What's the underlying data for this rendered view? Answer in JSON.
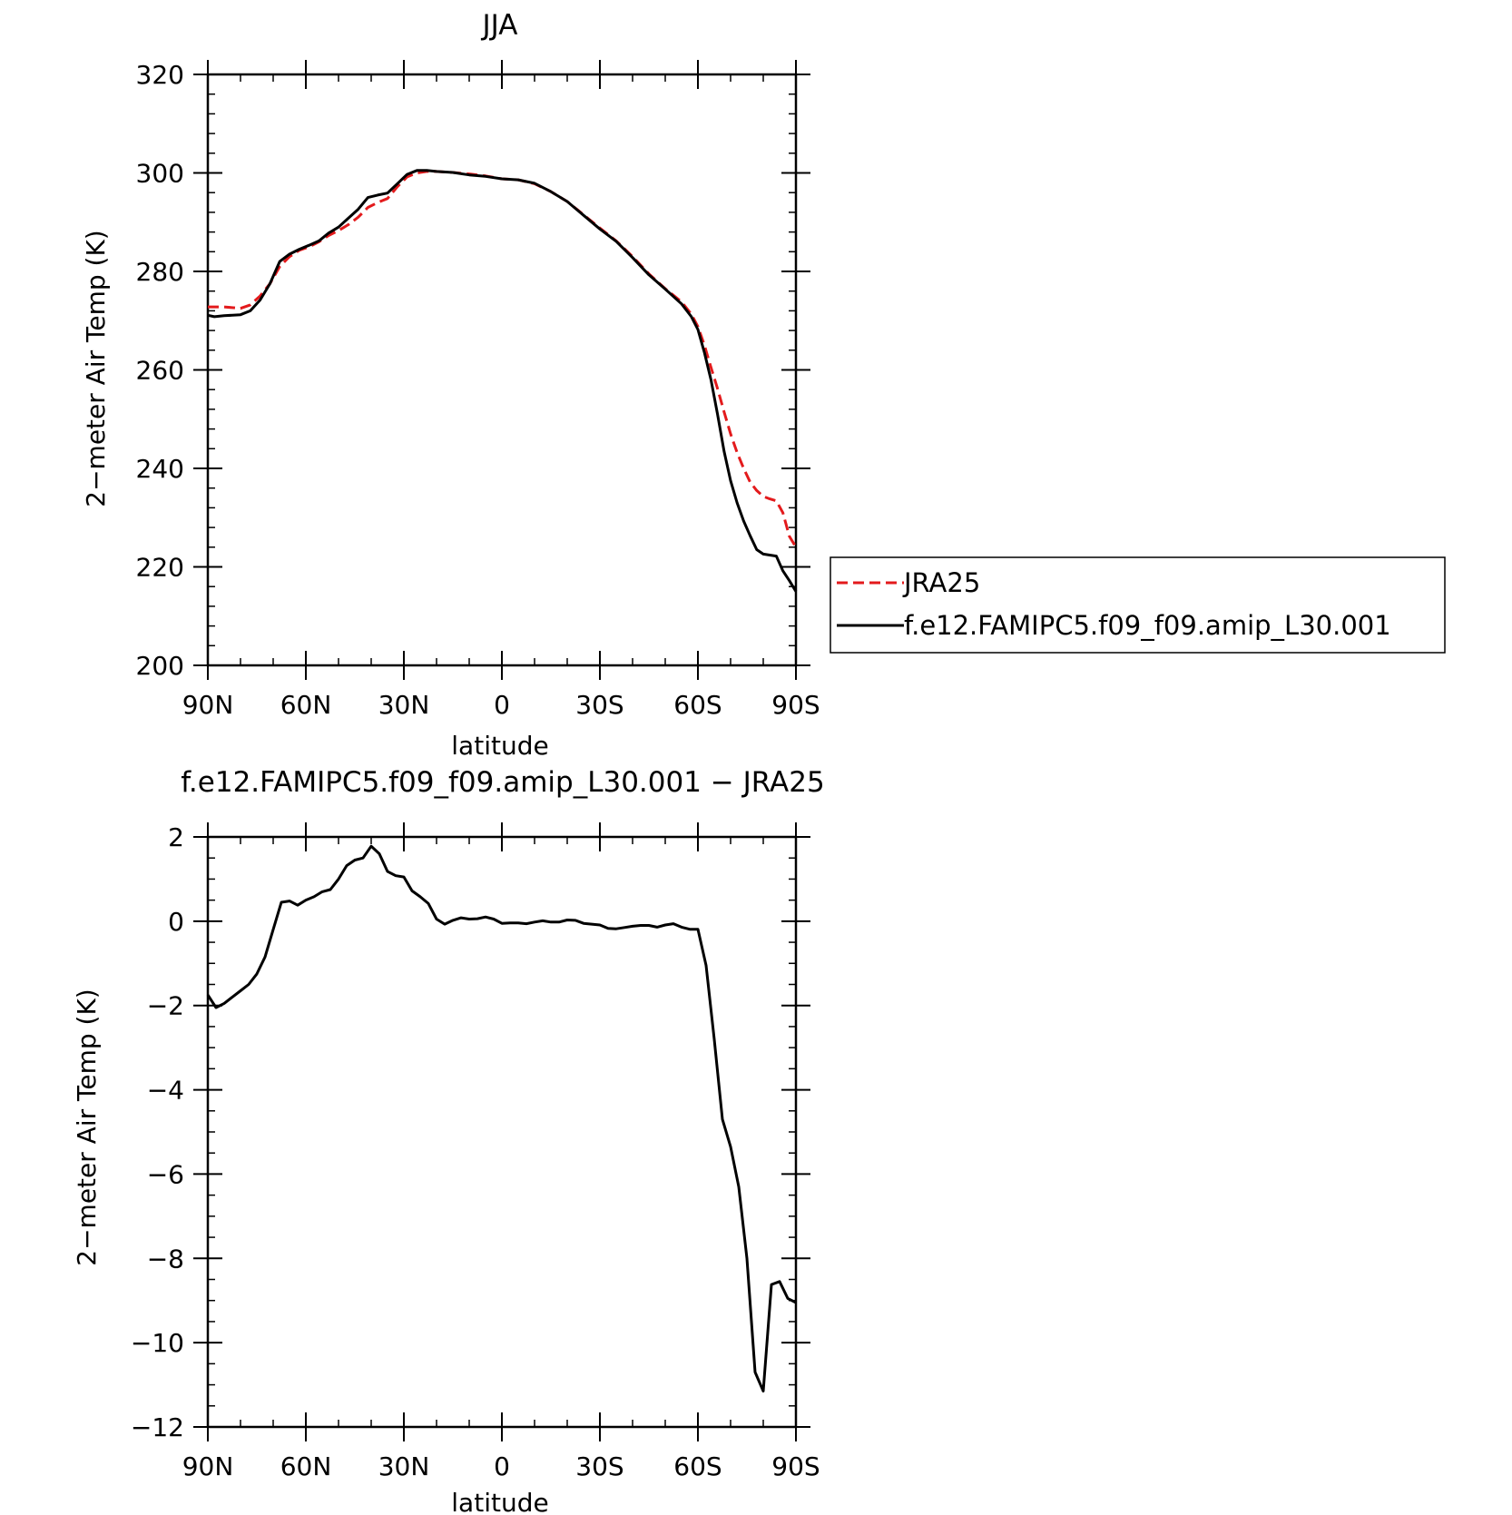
{
  "colors": {
    "jra25": "#e31a1c",
    "model": "#000000"
  },
  "chart_data": [
    {
      "type": "line",
      "title": "JJA",
      "xlabel": "latitude",
      "ylabel": "2−meter Air Temp (K)",
      "xlim": [
        90,
        -90
      ],
      "ylim": [
        200,
        320
      ],
      "xticks": {
        "values": [
          90,
          60,
          30,
          0,
          -30,
          -60,
          -90
        ],
        "labels": [
          "90N",
          "60N",
          "30N",
          "0",
          "30S",
          "60S",
          "90S"
        ]
      },
      "yticks": {
        "values": [
          200,
          220,
          240,
          260,
          280,
          300,
          320
        ],
        "labels": [
          "200",
          "220",
          "240",
          "260",
          "280",
          "300",
          "320"
        ]
      },
      "legend": {
        "placement": "right of plot",
        "entries": [
          "JRA25",
          "f.e12.FAMIPC5.f09_f09.amip_L30.001"
        ]
      },
      "series": [
        {
          "name": "JRA25",
          "style": "dashed",
          "color": "#e31a1c",
          "x": [
            90,
            85,
            80,
            77,
            74,
            71,
            68,
            65,
            62,
            59,
            56,
            53,
            50,
            47,
            44,
            41,
            38,
            35,
            32,
            29,
            26,
            23,
            20,
            15,
            10,
            5,
            0,
            -5,
            -10,
            -15,
            -20,
            -25,
            -30,
            -35,
            -40,
            -45,
            -50,
            -55,
            -58,
            -60,
            -62,
            -64,
            -66,
            -68,
            -70,
            -72,
            -74,
            -76,
            -78,
            -80,
            -82,
            -84,
            -86,
            -88,
            -90
          ],
          "y": [
            272.8,
            272.8,
            272.5,
            273.2,
            275,
            277.5,
            281,
            283,
            284.3,
            285,
            286,
            287.3,
            288.3,
            289.5,
            291,
            293,
            294,
            294.8,
            297.2,
            299.2,
            300,
            300.3,
            300.3,
            300.1,
            299.8,
            299.4,
            298.8,
            298.6,
            297.8,
            296.2,
            294.2,
            291.5,
            288.8,
            286.2,
            283,
            279.5,
            276.5,
            273.8,
            271.3,
            268.8,
            265,
            260.5,
            256.2,
            251.5,
            247,
            243.2,
            240,
            237.2,
            235.5,
            234.3,
            233.8,
            233.4,
            231,
            226.2,
            224
          ]
        },
        {
          "name": "f.e12.FAMIPC5.f09_f09.amip_L30.001",
          "style": "solid",
          "color": "#000000",
          "x": [
            90,
            88,
            85,
            80,
            77,
            74,
            71,
            68,
            65,
            62,
            59,
            56,
            53,
            50,
            47,
            44,
            41,
            38,
            35,
            32,
            29,
            26,
            23,
            20,
            15,
            10,
            5,
            0,
            -5,
            -10,
            -15,
            -20,
            -25,
            -30,
            -35,
            -40,
            -45,
            -50,
            -55,
            -58,
            -60,
            -62,
            -64,
            -66,
            -68,
            -70,
            -72,
            -74,
            -76,
            -78,
            -80,
            -82,
            -84,
            -86,
            -88,
            -90
          ],
          "y": [
            271.1,
            270.8,
            271,
            271.2,
            272,
            274.2,
            277.5,
            282,
            283.5,
            284.5,
            285.3,
            286.2,
            287.8,
            289,
            290.8,
            292.6,
            295,
            295.5,
            295.9,
            297.8,
            299.7,
            300.5,
            300.5,
            300.3,
            300.1,
            299.6,
            299.3,
            298.8,
            298.6,
            297.9,
            296.2,
            294.2,
            291.4,
            288.6,
            286.1,
            282.8,
            279.3,
            276.4,
            273.4,
            270.8,
            268.2,
            263.5,
            258,
            251,
            243.5,
            237.5,
            233,
            229.3,
            226.3,
            223.5,
            222.6,
            222.4,
            222.2,
            219.2,
            217.2,
            215
          ]
        }
      ]
    },
    {
      "type": "line",
      "title": "f.e12.FAMIPC5.f09_f09.amip_L30.001 − JRA25",
      "xlabel": "latitude",
      "ylabel": "2−meter Air Temp (K)",
      "xlim": [
        90,
        -90
      ],
      "ylim": [
        -12,
        2
      ],
      "xticks": {
        "values": [
          90,
          60,
          30,
          0,
          -30,
          -60,
          -90
        ],
        "labels": [
          "90N",
          "60N",
          "30N",
          "0",
          "30S",
          "60S",
          "90S"
        ]
      },
      "yticks": {
        "values": [
          -12,
          -10,
          -8,
          -6,
          -4,
          -2,
          0,
          2
        ],
        "labels": [
          "−12",
          "−10",
          "−8",
          "−6",
          "−4",
          "−2",
          "0",
          "2"
        ]
      },
      "series": [
        {
          "style": "solid",
          "color": "#000000",
          "x": [
            90,
            87.5,
            85,
            82.5,
            80,
            77.5,
            75,
            72.5,
            70,
            67.5,
            65,
            62.5,
            60,
            57.5,
            55,
            52.5,
            50,
            47.5,
            45,
            42.5,
            40,
            37.5,
            35,
            32.5,
            30,
            27.5,
            25,
            22.5,
            20,
            17.5,
            15,
            12.5,
            10,
            7.5,
            5,
            2.5,
            0,
            -2.5,
            -5,
            -7.5,
            -10,
            -12.5,
            -15,
            -17.5,
            -20,
            -22.5,
            -25,
            -27.5,
            -30,
            -32.5,
            -35,
            -37.5,
            -40,
            -42.5,
            -45,
            -47.5,
            -50,
            -52.5,
            -55,
            -57.5,
            -60,
            -62.5,
            -65,
            -67.5,
            -70,
            -72.5,
            -75,
            -77.5,
            -80,
            -82.5,
            -85,
            -87.5,
            -90
          ],
          "y": [
            -1.75,
            -2.05,
            -1.95,
            -1.8,
            -1.65,
            -1.5,
            -1.25,
            -0.85,
            -0.2,
            0.45,
            0.48,
            0.38,
            0.5,
            0.58,
            0.7,
            0.75,
            1,
            1.32,
            1.45,
            1.5,
            1.78,
            1.6,
            1.18,
            1.08,
            1.05,
            0.72,
            0.58,
            0.42,
            0.05,
            -0.07,
            0.02,
            0.08,
            0.05,
            0.06,
            0.1,
            0.05,
            -0.05,
            -0.04,
            -0.04,
            -0.06,
            -0.02,
            0.01,
            -0.02,
            -0.02,
            0.03,
            0.02,
            -0.05,
            -0.07,
            -0.09,
            -0.17,
            -0.18,
            -0.15,
            -0.12,
            -0.1,
            -0.1,
            -0.14,
            -0.09,
            -0.06,
            -0.14,
            -0.19,
            -0.19,
            -1.05,
            -2.8,
            -4.7,
            -5.35,
            -6.3,
            -8,
            -10.7,
            -11.15,
            -8.62,
            -8.55,
            -8.95,
            -9.05
          ]
        }
      ]
    }
  ]
}
